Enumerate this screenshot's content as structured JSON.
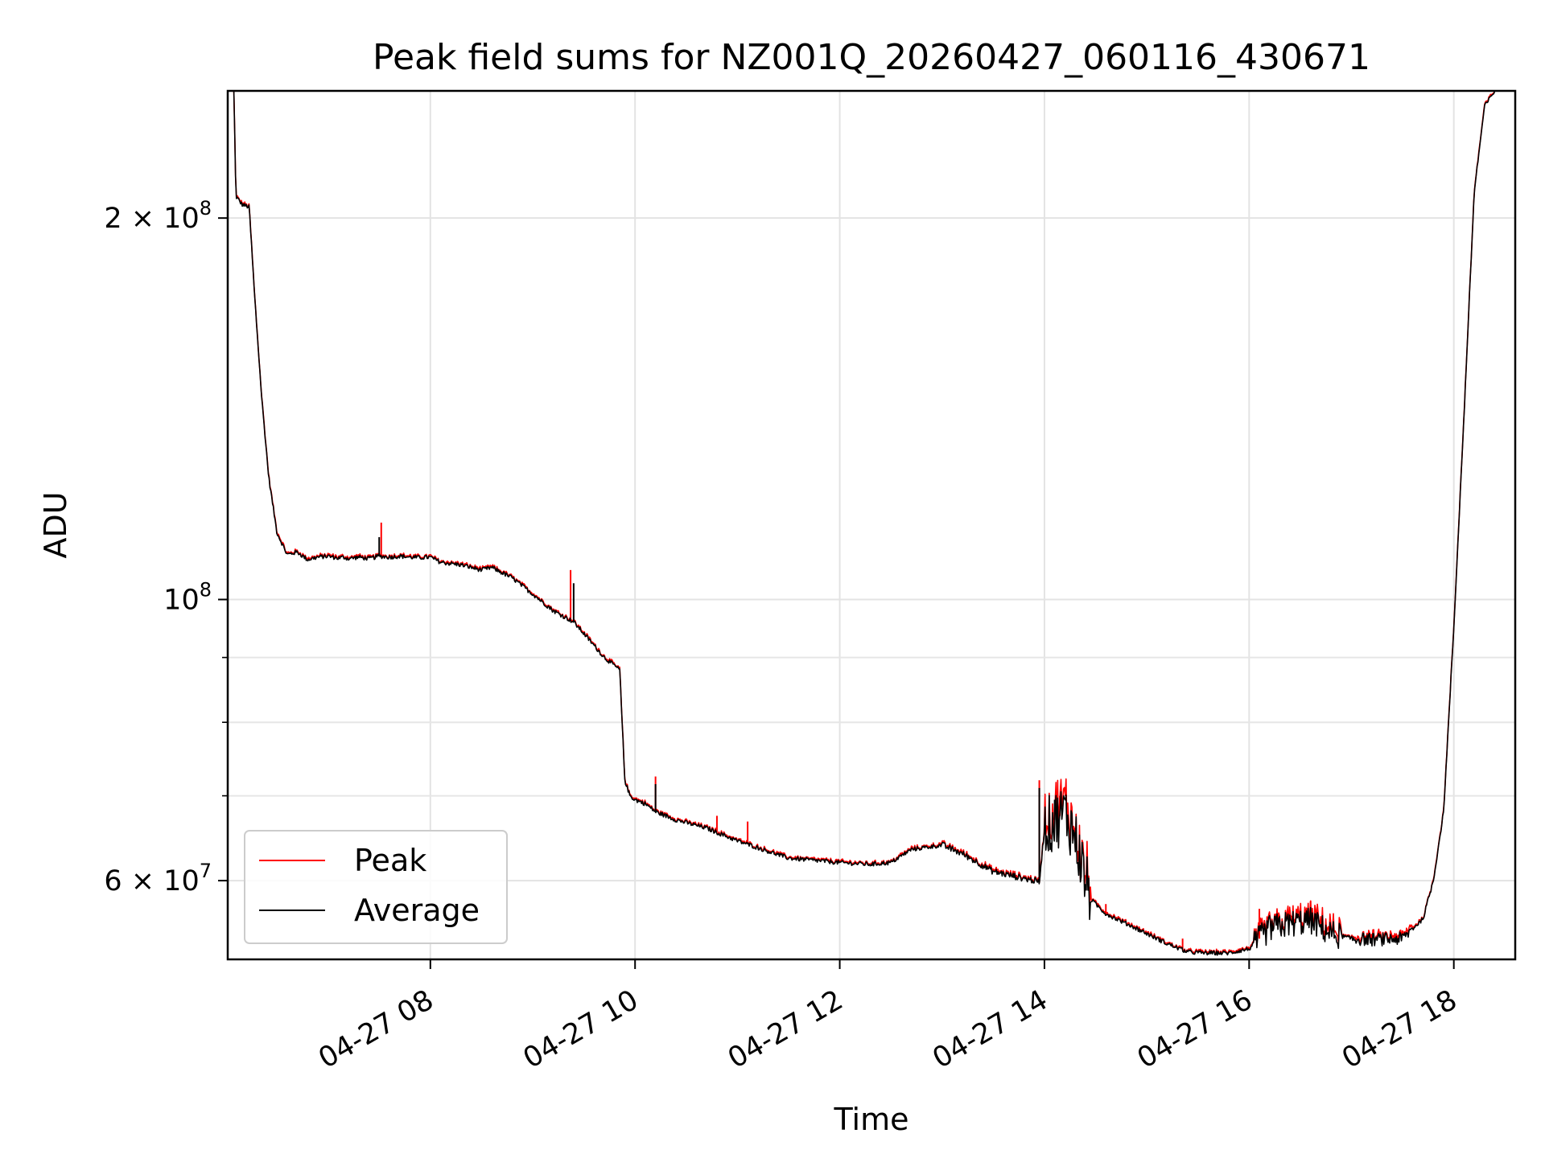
{
  "chart_data": {
    "type": "line",
    "title": "Peak field sums for NZ001Q_20260427_060116_430671",
    "xlabel": "Time",
    "ylabel": "ADU",
    "yscale": "log",
    "xlim_hours": [
      6.02,
      18.6
    ],
    "ylim": [
      52000000,
      252000000
    ],
    "grid": true,
    "legend_position": "lower-left",
    "x_ticks": [
      {
        "hour": 8,
        "label": "04-27 08"
      },
      {
        "hour": 10,
        "label": "04-27 10"
      },
      {
        "hour": 12,
        "label": "04-27 12"
      },
      {
        "hour": 14,
        "label": "04-27 14"
      },
      {
        "hour": 16,
        "label": "04-27 16"
      },
      {
        "hour": 18,
        "label": "04-27 18"
      }
    ],
    "y_major_ticks": [
      {
        "value": 60000000,
        "mantissa": "6",
        "exp": "7"
      },
      {
        "value": 100000000,
        "mantissa": "",
        "exp": "8"
      },
      {
        "value": 200000000,
        "mantissa": "2",
        "exp": "8"
      }
    ],
    "y_minor_values": [
      70000000,
      80000000,
      90000000
    ],
    "series": [
      {
        "name": "Peak",
        "color": "#ff0000"
      },
      {
        "name": "Average",
        "color": "#000000"
      }
    ],
    "hours": [
      6.08,
      6.1,
      6.12,
      6.16,
      6.23,
      6.28,
      6.35,
      6.42,
      6.5,
      6.6,
      6.7,
      6.8,
      6.9,
      7.0,
      7.1,
      7.15,
      7.2,
      7.3,
      7.4,
      7.5,
      7.6,
      7.7,
      7.8,
      7.9,
      8.0,
      8.1,
      8.3,
      8.5,
      8.6,
      8.8,
      9.0,
      9.2,
      9.4,
      9.5,
      9.7,
      9.85,
      9.9,
      9.95,
      10.0,
      10.1,
      10.2,
      10.4,
      10.7,
      11.0,
      11.5,
      12.0,
      12.3,
      12.5,
      12.7,
      13.0,
      13.2,
      13.5,
      13.9,
      13.95,
      14.0,
      14.2,
      14.3,
      14.45,
      14.6,
      14.9,
      15.2,
      15.4,
      15.6,
      15.8,
      16.0,
      16.2,
      16.4,
      16.6,
      16.8,
      17.0,
      17.2,
      17.5,
      17.7,
      17.8,
      17.9,
      18.0,
      18.1,
      18.2,
      18.3,
      18.4
    ],
    "average": [
      252000000,
      208000000,
      207000000,
      205000000,
      204000000,
      175000000,
      145000000,
      125000000,
      113000000,
      108500000,
      109000000,
      107500000,
      108000000,
      108200000,
      107800000,
      108000000,
      107700000,
      108000000,
      107700000,
      108200000,
      108000000,
      108200000,
      108000000,
      107900000,
      108000000,
      107000000,
      106500000,
      105500000,
      106000000,
      104000000,
      101000000,
      98000000,
      96000000,
      94000000,
      90000000,
      88000000,
      72000000,
      70000000,
      69500000,
      69000000,
      68000000,
      67000000,
      66000000,
      64500000,
      62500000,
      62000000,
      61800000,
      62000000,
      63500000,
      64000000,
      63000000,
      61000000,
      60000000,
      59800000,
      66000000,
      68000000,
      65000000,
      58000000,
      56500000,
      55000000,
      53500000,
      52700000,
      52600000,
      52600000,
      53000000,
      55000000,
      55500000,
      55800000,
      54500000,
      54000000,
      53900000,
      54000000,
      56000000,
      60000000,
      68000000,
      95000000,
      140000000,
      210000000,
      245000000,
      252000000
    ],
    "average_spikes": [
      {
        "hour": 7.5,
        "value": 112000000
      },
      {
        "hour": 9.4,
        "value": 103000000
      },
      {
        "hour": 10.2,
        "value": 71500000
      },
      {
        "hour": 13.95,
        "value": 71000000
      },
      {
        "hour": 14.1,
        "value": 69500000
      },
      {
        "hour": 14.2,
        "value": 68000000
      }
    ],
    "peak_spikes": [
      {
        "hour": 7.52,
        "value": 115000000
      },
      {
        "hour": 9.37,
        "value": 105500000
      },
      {
        "hour": 10.2,
        "value": 72500000
      },
      {
        "hour": 10.8,
        "value": 67500000
      },
      {
        "hour": 11.1,
        "value": 66800000
      },
      {
        "hour": 13.95,
        "value": 72000000
      },
      {
        "hour": 14.15,
        "value": 70000000
      },
      {
        "hour": 14.6,
        "value": 57500000
      },
      {
        "hour": 15.35,
        "value": 54000000
      },
      {
        "hour": 16.1,
        "value": 57000000
      },
      {
        "hour": 16.6,
        "value": 57800000
      }
    ]
  }
}
